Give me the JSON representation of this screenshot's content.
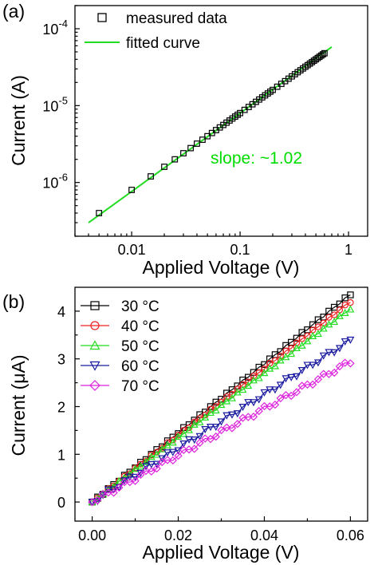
{
  "chart_data": [
    {
      "panel_label": "(a)",
      "type": "scatter",
      "xscale": "log",
      "yscale": "log",
      "xlim": [
        0.003,
        1.5
      ],
      "ylim": [
        2e-07,
        0.0002
      ],
      "xlabel": "Applied Voltage (V)",
      "ylabel": "Current (A)",
      "xticks": [
        {
          "value": 0.01,
          "label": "0.01"
        },
        {
          "value": 0.1,
          "label": "0.1"
        },
        {
          "value": 1,
          "label": "1"
        }
      ],
      "yticks": [
        {
          "value": 1e-06,
          "base": "10",
          "exp": "-6"
        },
        {
          "value": 1e-05,
          "base": "10",
          "exp": "-5"
        },
        {
          "value": 0.0001,
          "base": "10",
          "exp": "-4"
        }
      ],
      "legend": {
        "position": "top-left",
        "entries": [
          "measured data",
          "fitted curve"
        ]
      },
      "annotation": {
        "text": "slope: ~1.02",
        "color": "#00dd00"
      },
      "series": [
        {
          "name": "measured data",
          "kind": "points",
          "marker": "square-open",
          "color": "#000000",
          "x": [
            0.005,
            0.01,
            0.015,
            0.02,
            0.025,
            0.03,
            0.035,
            0.04,
            0.045,
            0.05,
            0.055,
            0.06,
            0.065,
            0.07,
            0.075,
            0.08,
            0.085,
            0.09,
            0.095,
            0.1,
            0.11,
            0.12,
            0.13,
            0.14,
            0.15,
            0.16,
            0.17,
            0.18,
            0.19,
            0.2,
            0.22,
            0.24,
            0.26,
            0.28,
            0.3,
            0.32,
            0.34,
            0.36,
            0.38,
            0.4,
            0.42,
            0.44,
            0.46,
            0.48,
            0.5,
            0.52,
            0.54,
            0.56,
            0.58,
            0.6
          ],
          "y": [
            4e-07,
            8e-07,
            1.2e-06,
            1.6e-06,
            2e-06,
            2.4e-06,
            2.8e-06,
            3.2e-06,
            3.6e-06,
            4e-06,
            4.4e-06,
            4.8e-06,
            5.2e-06,
            5.6e-06,
            6e-06,
            6.4e-06,
            6.8e-06,
            7.2e-06,
            7.6e-06,
            8e-06,
            8.8e-06,
            9.6e-06,
            1.04e-05,
            1.12e-05,
            1.2e-05,
            1.28e-05,
            1.36e-05,
            1.44e-05,
            1.52e-05,
            1.6e-05,
            1.76e-05,
            1.92e-05,
            2.08e-05,
            2.24e-05,
            2.4e-05,
            2.56e-05,
            2.72e-05,
            2.88e-05,
            3.04e-05,
            3.2e-05,
            3.36e-05,
            3.52e-05,
            3.68e-05,
            3.84e-05,
            4e-05,
            4.16e-05,
            4.32e-05,
            4.48e-05,
            4.64e-05,
            4.8e-05
          ]
        },
        {
          "name": "fitted curve",
          "kind": "line",
          "color": "#22dd22",
          "x": [
            0.004,
            0.7
          ],
          "y": [
            3e-07,
            5.8e-05
          ]
        }
      ]
    },
    {
      "panel_label": "(b)",
      "type": "line",
      "xlim": [
        -0.004,
        0.064
      ],
      "ylim": [
        -0.4,
        4.5
      ],
      "xlabel": "Applied Voltage (V)",
      "ylabel": "Current (μA)",
      "xticks": [
        {
          "value": 0.0,
          "label": "0.00"
        },
        {
          "value": 0.02,
          "label": "0.02"
        },
        {
          "value": 0.04,
          "label": "0.04"
        },
        {
          "value": 0.06,
          "label": "0.06"
        }
      ],
      "yticks": [
        {
          "value": 0,
          "label": "0"
        },
        {
          "value": 1,
          "label": "1"
        },
        {
          "value": 2,
          "label": "2"
        },
        {
          "value": 3,
          "label": "3"
        },
        {
          "value": 4,
          "label": "4"
        }
      ],
      "legend": {
        "position": "top-left"
      },
      "series": [
        {
          "name": "30 °C",
          "marker": "square",
          "color": "#000000",
          "slope": 72.5
        },
        {
          "name": "40 °C",
          "marker": "circle",
          "color": "#ee2222",
          "slope": 70.0
        },
        {
          "name": "50 °C",
          "marker": "triangle-up",
          "color": "#22dd22",
          "slope": 67.5
        },
        {
          "name": "60 °C",
          "marker": "triangle-down",
          "color": "#1a1aa0",
          "slope": 56.5
        },
        {
          "name": "70 °C",
          "marker": "diamond",
          "color": "#dd22dd",
          "slope": 49.0
        }
      ],
      "x_range": [
        0.0,
        0.06
      ],
      "n_points": 49
    }
  ]
}
